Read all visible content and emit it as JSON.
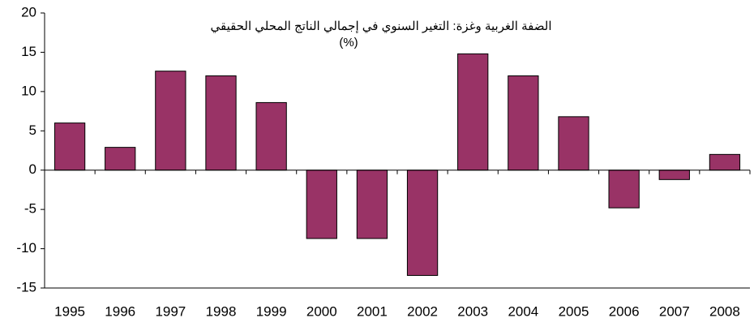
{
  "chart_data": {
    "type": "bar",
    "title": "الضفة الغربية وغزة: التغير السنوي في إجمالي الناتج المحلي الحقيقي",
    "subtitle": "(%)",
    "categories": [
      "1995",
      "1996",
      "1997",
      "1998",
      "1999",
      "2000",
      "2001",
      "2002",
      "2003",
      "2004",
      "2005",
      "2006",
      "2007",
      "2008"
    ],
    "values": [
      6.0,
      2.9,
      12.6,
      12.0,
      8.6,
      -8.7,
      -8.7,
      -13.4,
      14.8,
      12.0,
      6.8,
      -4.8,
      -1.2,
      2.0
    ],
    "color": "#993366",
    "ylim": [
      -15,
      20
    ],
    "yticks": [
      -15,
      -10,
      -5,
      0,
      5,
      10,
      15,
      20
    ],
    "grid": false
  }
}
